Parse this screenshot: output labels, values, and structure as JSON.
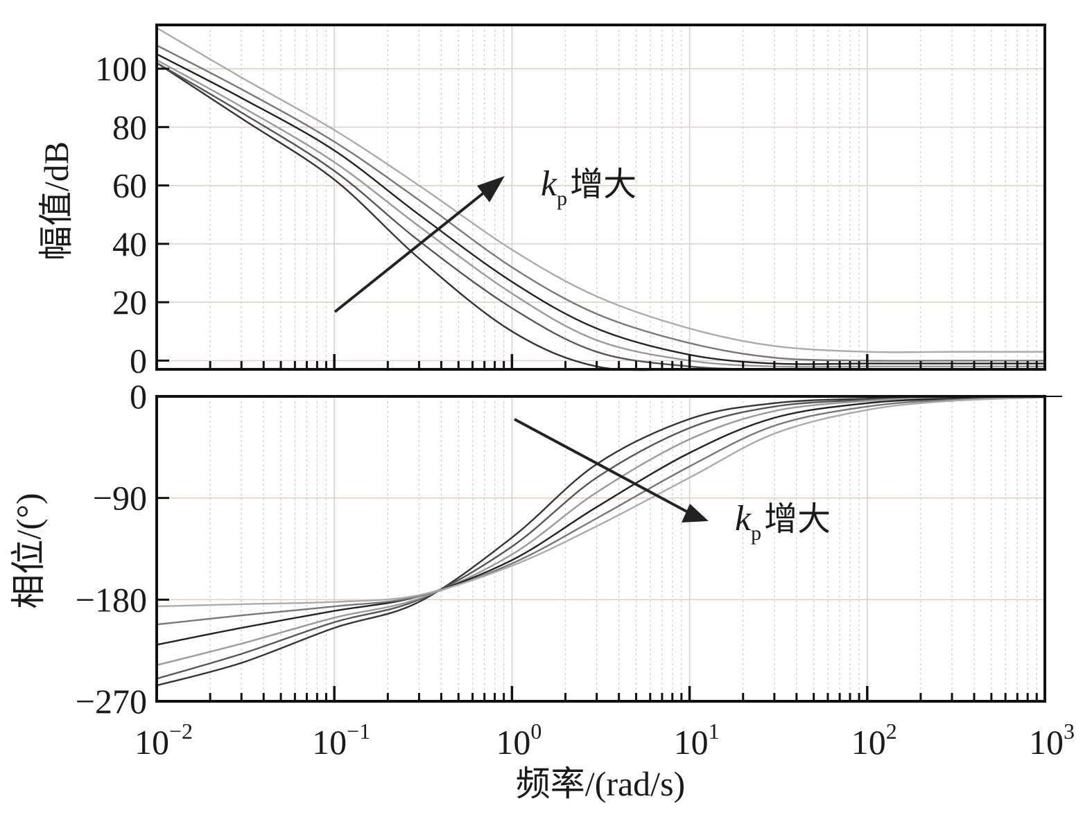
{
  "chart_data": [
    {
      "type": "line",
      "panel": "magnitude",
      "xscale": "log",
      "xlim": [
        0.01,
        1000
      ],
      "ylim": [
        -3,
        115
      ],
      "ylabel": "幅值/dB",
      "y_ticks": [
        0,
        20,
        40,
        60,
        80,
        100
      ],
      "y_tick_labels": [
        "0",
        "20",
        "40",
        "60",
        "80",
        "100"
      ],
      "grid": true,
      "annotation": {
        "k": "k",
        "sub": "p",
        "text": "增大"
      },
      "series": [
        {
          "x": [
            0.01,
            0.03,
            0.1,
            0.3,
            1,
            3,
            10,
            30,
            100,
            300,
            1000
          ],
          "y": [
            102,
            83,
            62,
            35,
            10,
            -2,
            -3,
            -3,
            -3,
            -3,
            -3
          ],
          "color": "#333333"
        },
        {
          "x": [
            0.01,
            0.03,
            0.1,
            0.3,
            1,
            3,
            10,
            30,
            100,
            300,
            1000
          ],
          "y": [
            102,
            85,
            65,
            41,
            18,
            3,
            -2,
            -3,
            -3,
            -3,
            -3
          ],
          "color": "#555555"
        },
        {
          "x": [
            0.01,
            0.03,
            0.1,
            0.3,
            1,
            3,
            10,
            30,
            100,
            300,
            1000
          ],
          "y": [
            103,
            87,
            68,
            46,
            23,
            7,
            0,
            -2,
            -2,
            -2,
            -2
          ],
          "color": "#999999"
        },
        {
          "x": [
            0.01,
            0.03,
            0.1,
            0.3,
            1,
            3,
            10,
            30,
            100,
            300,
            1000
          ],
          "y": [
            105,
            90,
            72,
            50,
            27,
            11,
            2,
            -1,
            -1,
            -1,
            -1
          ],
          "color": "#222222"
        },
        {
          "x": [
            0.01,
            0.03,
            0.1,
            0.3,
            1,
            3,
            10,
            30,
            100,
            300,
            1000
          ],
          "y": [
            108,
            93,
            75,
            55,
            32,
            16,
            6,
            1,
            0,
            0,
            0
          ],
          "color": "#777777"
        },
        {
          "x": [
            0.01,
            0.03,
            0.1,
            0.3,
            1,
            3,
            10,
            30,
            100,
            300,
            1000
          ],
          "y": [
            114,
            97,
            79,
            60,
            38,
            22,
            11,
            5,
            3,
            3,
            3
          ],
          "color": "#aaaaaa"
        }
      ]
    },
    {
      "type": "line",
      "panel": "phase",
      "xscale": "log",
      "xlim": [
        0.01,
        1000
      ],
      "ylim": [
        -270,
        0
      ],
      "xlabel": "频率/(rad/s)",
      "ylabel": "相位/(°)",
      "y_ticks": [
        0,
        -90,
        -180,
        -270
      ],
      "y_tick_labels": [
        "0",
        "−90",
        "−180",
        "−270"
      ],
      "x_ticks": [
        0.01,
        0.1,
        1,
        10,
        100,
        1000
      ],
      "x_tick_labels": [
        {
          "base": "10",
          "exp": "−2"
        },
        {
          "base": "10",
          "exp": "−1"
        },
        {
          "base": "10",
          "exp": "0"
        },
        {
          "base": "10",
          "exp": "1"
        },
        {
          "base": "10",
          "exp": "2"
        },
        {
          "base": "10",
          "exp": "3"
        }
      ],
      "grid": true,
      "annotation": {
        "k": "k",
        "sub": "p",
        "text": "增大"
      },
      "series": [
        {
          "x": [
            0.01,
            0.03,
            0.1,
            0.3,
            1,
            3,
            10,
            30,
            100,
            300,
            1000
          ],
          "y": [
            -256,
            -236,
            -205,
            -182,
            -125,
            -60,
            -20,
            -6,
            -2,
            -1,
            -1
          ],
          "color": "#333333"
        },
        {
          "x": [
            0.01,
            0.03,
            0.1,
            0.3,
            1,
            3,
            10,
            30,
            100,
            300,
            1000
          ],
          "y": [
            -250,
            -228,
            -200,
            -180,
            -133,
            -72,
            -28,
            -9,
            -3,
            -1,
            -1
          ],
          "color": "#555555"
        },
        {
          "x": [
            0.01,
            0.03,
            0.1,
            0.3,
            1,
            3,
            10,
            30,
            100,
            300,
            1000
          ],
          "y": [
            -238,
            -219,
            -196,
            -179,
            -140,
            -85,
            -38,
            -13,
            -4,
            -1,
            -1
          ],
          "color": "#999999"
        },
        {
          "x": [
            0.01,
            0.03,
            0.1,
            0.3,
            1,
            3,
            10,
            30,
            100,
            300,
            1000
          ],
          "y": [
            -220,
            -205,
            -190,
            -177,
            -145,
            -98,
            -50,
            -19,
            -6,
            -2,
            -1
          ],
          "color": "#222222"
        },
        {
          "x": [
            0.01,
            0.03,
            0.1,
            0.3,
            1,
            3,
            10,
            30,
            100,
            300,
            1000
          ],
          "y": [
            -202,
            -194,
            -186,
            -177,
            -148,
            -108,
            -62,
            -26,
            -9,
            -3,
            -1
          ],
          "color": "#777777"
        },
        {
          "x": [
            0.01,
            0.03,
            0.1,
            0.3,
            1,
            3,
            10,
            30,
            100,
            300,
            1000
          ],
          "y": [
            -186,
            -184,
            -182,
            -176,
            -150,
            -115,
            -72,
            -33,
            -12,
            -4,
            -1
          ],
          "color": "#aaaaaa"
        }
      ]
    }
  ]
}
